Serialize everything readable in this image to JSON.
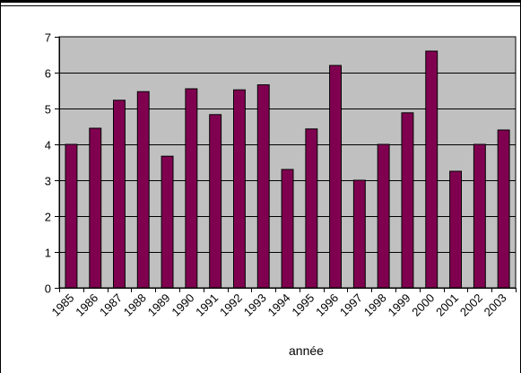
{
  "chart_data": {
    "type": "bar",
    "categories": [
      "1985",
      "1986",
      "1987",
      "1988",
      "1989",
      "1990",
      "1991",
      "1992",
      "1993",
      "1994",
      "1995",
      "1996",
      "1997",
      "1998",
      "1999",
      "2000",
      "2001",
      "2002",
      "2003"
    ],
    "values": [
      4.0,
      4.45,
      5.23,
      5.47,
      3.67,
      5.55,
      4.83,
      5.52,
      5.66,
      3.3,
      4.43,
      6.2,
      3.0,
      4.0,
      4.88,
      6.6,
      3.25,
      4.0,
      4.4
    ],
    "yticks": [
      "0",
      "1",
      "2",
      "3",
      "4",
      "5",
      "6",
      "7"
    ],
    "ylim": [
      0,
      7
    ],
    "xlabel": "année",
    "ylabel": "",
    "title": "",
    "grid": true,
    "colors": {
      "bar_fill": "#800050",
      "bar_stroke": "#000000",
      "plot_bg": "#c0c0c0",
      "gridline": "#000000"
    }
  }
}
